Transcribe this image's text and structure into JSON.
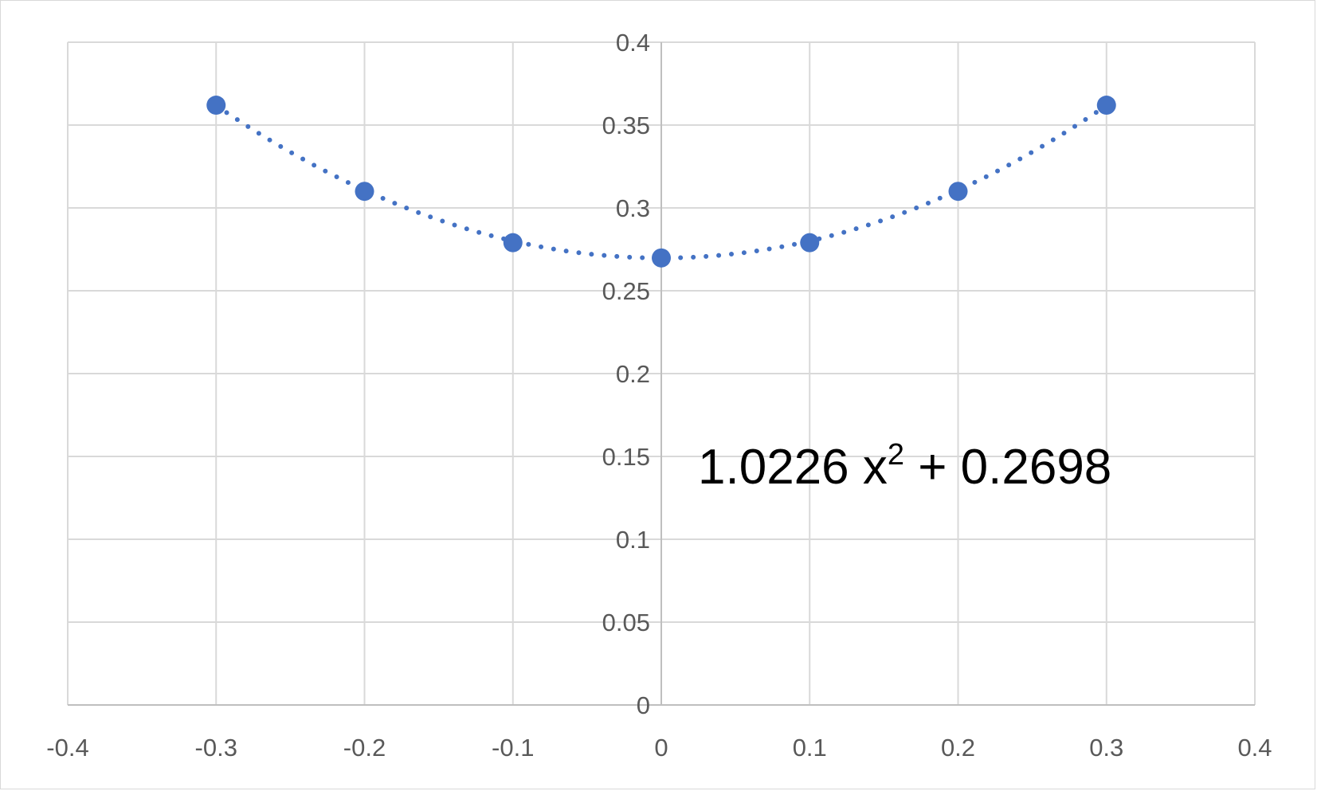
{
  "chart_data": {
    "type": "scatter",
    "title": "",
    "xlabel": "",
    "ylabel": "",
    "xlim": [
      -0.4,
      0.4
    ],
    "ylim": [
      0,
      0.4
    ],
    "x_ticks": [
      -0.4,
      -0.3,
      -0.2,
      -0.1,
      0,
      0.1,
      0.2,
      0.3,
      0.4
    ],
    "y_ticks": [
      0,
      0.05,
      0.1,
      0.15,
      0.2,
      0.25,
      0.3,
      0.35,
      0.4
    ],
    "x_tick_labels": [
      "-0.4",
      "-0.3",
      "-0.2",
      "-0.1",
      "0",
      "0.1",
      "0.2",
      "0.3",
      "0.4"
    ],
    "y_tick_labels": [
      "0",
      "0.05",
      "0.1",
      "0.15",
      "0.2",
      "0.25",
      "0.3",
      "0.35",
      "0.4"
    ],
    "grid": true,
    "legend": "none",
    "series": [
      {
        "x": [
          -0.3,
          -0.2,
          -0.1,
          0,
          0.1,
          0.2,
          0.3
        ],
        "y": [
          0.362,
          0.31,
          0.279,
          0.2698,
          0.279,
          0.31,
          0.362
        ],
        "color": "#4472c4"
      }
    ],
    "trendline": {
      "type": "polynomial",
      "style": "dotted",
      "color": "#4472c4",
      "coefficients": {
        "a": 1.0226,
        "b": 0,
        "c": 0.2698
      }
    },
    "annotation": {
      "coef": "1.0226 x",
      "exponent": "2",
      "rest": " + 0.2698"
    }
  }
}
